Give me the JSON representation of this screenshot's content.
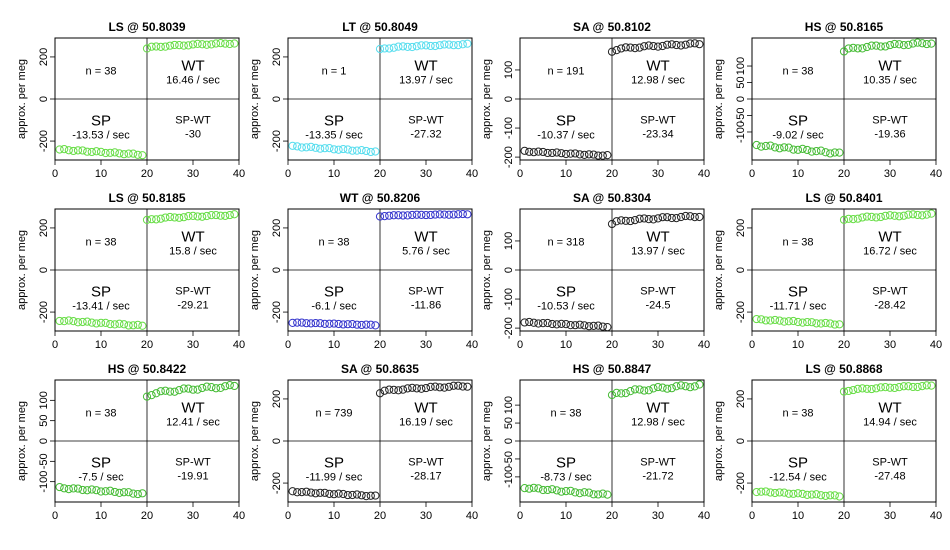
{
  "chart_data": [
    {
      "type": "scatter",
      "title": "LS @ 50.8039",
      "ylabel": "approx. per meg",
      "xlim": [
        0,
        40
      ],
      "ylim": [
        -290,
        290
      ],
      "yticks": [
        -200,
        0,
        200
      ],
      "xticks": [
        0,
        10,
        20,
        30,
        40
      ],
      "n_label": "n = 38",
      "wt_label": "WT",
      "wt_rate": "16.46 / sec",
      "sp_label": "SP",
      "sp_rate": "-13.53 / sec",
      "diff_label": "SP-WT",
      "diff_value": "-30",
      "color": "#66dd44",
      "sp_start": -240,
      "sp_end": -265,
      "wt_start": 240,
      "wt_end": 265
    },
    {
      "type": "scatter",
      "title": "LT @ 50.8049",
      "ylabel": "approx. per meg",
      "xlim": [
        0,
        40
      ],
      "ylim": [
        -290,
        290
      ],
      "yticks": [
        -200,
        0,
        200
      ],
      "xticks": [
        0,
        10,
        20,
        30,
        40
      ],
      "n_label": "n = 1",
      "wt_label": "WT",
      "wt_rate": "13.97 / sec",
      "sp_label": "SP",
      "sp_rate": "-13.35 / sec",
      "diff_label": "SP-WT",
      "diff_value": "-27.32",
      "color": "#55ddee",
      "sp_start": -225,
      "sp_end": -250,
      "wt_start": 235,
      "wt_end": 260
    },
    {
      "type": "scatter",
      "title": "SA @ 50.8102",
      "ylabel": "approx. per meg",
      "xlim": [
        0,
        40
      ],
      "ylim": [
        -210,
        210
      ],
      "yticks": [
        -200,
        -100,
        0,
        100
      ],
      "xticks": [
        0,
        10,
        20,
        30,
        40
      ],
      "n_label": "n = 191",
      "wt_label": "WT",
      "wt_rate": "12.98 / sec",
      "sp_label": "SP",
      "sp_rate": "-10.37 / sec",
      "diff_label": "SP-WT",
      "diff_value": "-23.34",
      "color": "#222222",
      "sp_start": -180,
      "sp_end": -195,
      "wt_start": 165,
      "wt_end": 190
    },
    {
      "type": "scatter",
      "title": "HS @ 50.8165",
      "ylabel": "approx. per meg",
      "xlim": [
        0,
        40
      ],
      "ylim": [
        -185,
        185
      ],
      "yticks": [
        -100,
        -50,
        0,
        50,
        100
      ],
      "xticks": [
        0,
        10,
        20,
        30,
        40
      ],
      "n_label": "n = 38",
      "wt_label": "WT",
      "wt_rate": "10.35 / sec",
      "sp_label": "SP",
      "sp_rate": "-9.02 / sec",
      "diff_label": "SP-WT",
      "diff_value": "-19.36",
      "color": "#44bb33",
      "sp_start": -140,
      "sp_end": -165,
      "wt_start": 145,
      "wt_end": 170
    },
    {
      "type": "scatter",
      "title": "LS @ 50.8185",
      "ylabel": "approx. per meg",
      "xlim": [
        0,
        40
      ],
      "ylim": [
        -290,
        290
      ],
      "yticks": [
        -200,
        0,
        200
      ],
      "xticks": [
        0,
        10,
        20,
        30,
        40
      ],
      "n_label": "n = 38",
      "wt_label": "WT",
      "wt_rate": "15.8 / sec",
      "sp_label": "SP",
      "sp_rate": "-13.41 / sec",
      "diff_label": "SP-WT",
      "diff_value": "-29.21",
      "color": "#66dd44",
      "sp_start": -240,
      "sp_end": -265,
      "wt_start": 235,
      "wt_end": 262
    },
    {
      "type": "scatter",
      "title": "WT @ 50.8206",
      "ylabel": "approx. per meg",
      "xlim": [
        0,
        40
      ],
      "ylim": [
        -290,
        290
      ],
      "yticks": [
        -200,
        0,
        200
      ],
      "xticks": [
        0,
        10,
        20,
        30,
        40
      ],
      "n_label": "n = 38",
      "wt_label": "WT",
      "wt_rate": "5.76 / sec",
      "sp_label": "SP",
      "sp_rate": "-6.1 / sec",
      "diff_label": "SP-WT",
      "diff_value": "-11.86",
      "color": "#3333cc",
      "sp_start": -250,
      "sp_end": -262,
      "wt_start": 255,
      "wt_end": 265
    },
    {
      "type": "scatter",
      "title": "SA @ 50.8304",
      "ylabel": "approx. per meg",
      "xlim": [
        0,
        40
      ],
      "ylim": [
        -210,
        210
      ],
      "yticks": [
        -200,
        -100,
        0,
        100
      ],
      "xticks": [
        0,
        10,
        20,
        30,
        40
      ],
      "n_label": "n = 318",
      "wt_label": "WT",
      "wt_rate": "13.97 / sec",
      "sp_label": "SP",
      "sp_rate": "-10.53 / sec",
      "diff_label": "SP-WT",
      "diff_value": "-24.5",
      "color": "#222222",
      "sp_start": -180,
      "sp_end": -195,
      "wt_start": 160,
      "wt_end": 185
    },
    {
      "type": "scatter",
      "title": "LS @ 50.8401",
      "ylabel": "approx. per meg",
      "xlim": [
        0,
        40
      ],
      "ylim": [
        -290,
        290
      ],
      "yticks": [
        -200,
        0,
        200
      ],
      "xticks": [
        0,
        10,
        20,
        30,
        40
      ],
      "n_label": "n = 38",
      "wt_label": "WT",
      "wt_rate": "16.72 / sec",
      "sp_label": "SP",
      "sp_rate": "-11.71 / sec",
      "diff_label": "SP-WT",
      "diff_value": "-28.42",
      "color": "#66dd44",
      "sp_start": -235,
      "sp_end": -258,
      "wt_start": 235,
      "wt_end": 265
    },
    {
      "type": "scatter",
      "title": "HS @ 50.8422",
      "ylabel": "approx. per meg",
      "xlim": [
        0,
        40
      ],
      "ylim": [
        -150,
        150
      ],
      "yticks": [
        -100,
        -50,
        0,
        50,
        100
      ],
      "xticks": [
        0,
        10,
        20,
        30,
        40
      ],
      "n_label": "n = 38",
      "wt_label": "WT",
      "wt_rate": "12.41 / sec",
      "sp_label": "SP",
      "sp_rate": "-7.5 / sec",
      "diff_label": "SP-WT",
      "diff_value": "-19.91",
      "color": "#44bb33",
      "sp_start": -115,
      "sp_end": -130,
      "wt_start": 110,
      "wt_end": 135
    },
    {
      "type": "scatter",
      "title": "SA @ 50.8635",
      "ylabel": "approx. per meg",
      "xlim": [
        0,
        40
      ],
      "ylim": [
        -290,
        290
      ],
      "yticks": [
        -200,
        0,
        200
      ],
      "xticks": [
        0,
        10,
        20,
        30,
        40
      ],
      "n_label": "n = 739",
      "wt_label": "WT",
      "wt_rate": "16.19 / sec",
      "sp_label": "SP",
      "sp_rate": "-11.99 / sec",
      "diff_label": "SP-WT",
      "diff_value": "-28.17",
      "color": "#222222",
      "sp_start": -240,
      "sp_end": -262,
      "wt_start": 230,
      "wt_end": 262
    },
    {
      "type": "scatter",
      "title": "HS @ 50.8847",
      "ylabel": "approx. per meg",
      "xlim": [
        0,
        40
      ],
      "ylim": [
        -170,
        170
      ],
      "yticks": [
        -100,
        -50,
        0,
        50,
        100
      ],
      "xticks": [
        0,
        10,
        20,
        30,
        40
      ],
      "n_label": "n = 38",
      "wt_label": "WT",
      "wt_rate": "12.98 / sec",
      "sp_label": "SP",
      "sp_rate": "-8.73 / sec",
      "diff_label": "SP-WT",
      "diff_value": "-21.72",
      "color": "#44bb33",
      "sp_start": -130,
      "sp_end": -150,
      "wt_start": 125,
      "wt_end": 155
    },
    {
      "type": "scatter",
      "title": "LS @ 50.8868",
      "ylabel": "approx. per meg",
      "xlim": [
        0,
        40
      ],
      "ylim": [
        -290,
        290
      ],
      "yticks": [
        -200,
        0,
        200
      ],
      "xticks": [
        0,
        10,
        20,
        30,
        40
      ],
      "n_label": "n = 38",
      "wt_label": "WT",
      "wt_rate": "14.94 / sec",
      "sp_label": "SP",
      "sp_rate": "-12.54 / sec",
      "diff_label": "SP-WT",
      "diff_value": "-27.48",
      "color": "#66dd44",
      "sp_start": -240,
      "sp_end": -262,
      "wt_start": 235,
      "wt_end": 262
    }
  ]
}
